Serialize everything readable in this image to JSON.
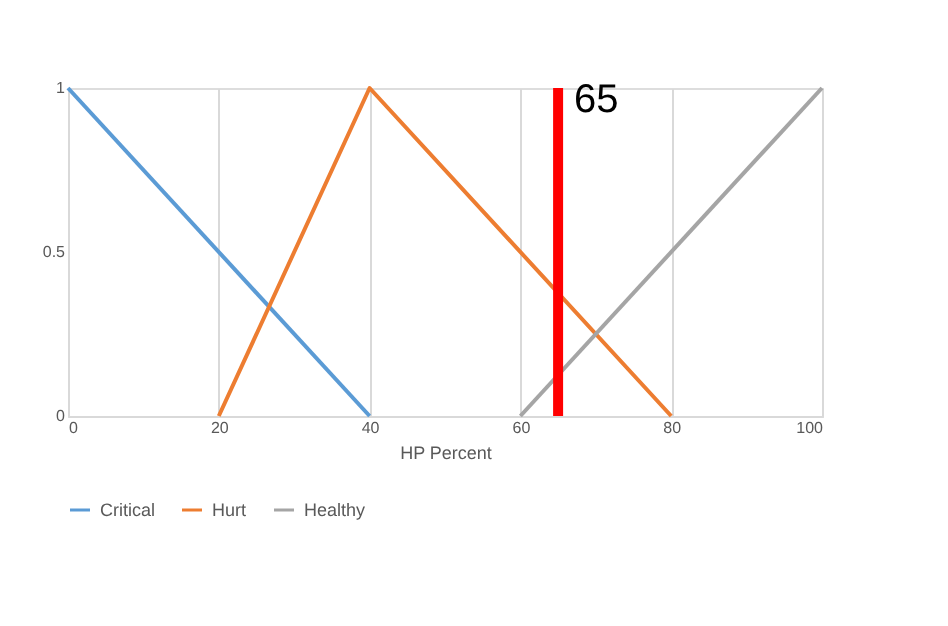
{
  "chart_data": {
    "type": "line",
    "xlabel": "HP Percent",
    "xlim": [
      0,
      100
    ],
    "xticks": [
      0,
      20,
      40,
      60,
      80,
      100
    ],
    "ylim": [
      0,
      1
    ],
    "yticks": [
      0,
      0.5,
      1
    ],
    "grid": "x",
    "legend": "bottom",
    "marker": "none",
    "line_style": "solid",
    "series": [
      {
        "name": "Critical",
        "color": "#5b9bd5",
        "x": [
          0,
          40
        ],
        "values": [
          1,
          0
        ]
      },
      {
        "name": "Hurt",
        "color": "#ed7d31",
        "x": [
          20,
          40,
          80
        ],
        "values": [
          0,
          1,
          0
        ]
      },
      {
        "name": "Healthy",
        "color": "#a5a5a5",
        "x": [
          60,
          100
        ],
        "values": [
          0,
          1
        ]
      }
    ],
    "ref_lines": [
      {
        "axis": "x",
        "value": 65,
        "label": "65",
        "color": "#ff0000",
        "line_style": "solid"
      }
    ]
  }
}
